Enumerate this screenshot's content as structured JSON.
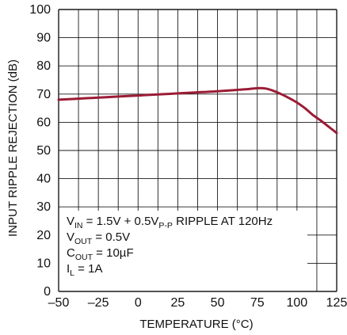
{
  "chart_data": {
    "type": "line",
    "x": [
      -50,
      -40,
      -30,
      -20,
      -10,
      0,
      10,
      20,
      30,
      40,
      50,
      60,
      65,
      70,
      75,
      80,
      85,
      90,
      95,
      100,
      105,
      110,
      115,
      120,
      125
    ],
    "series": [
      {
        "values": [
          68.0,
          68.3,
          68.6,
          68.9,
          69.2,
          69.5,
          69.8,
          70.1,
          70.4,
          70.7,
          71.0,
          71.4,
          71.6,
          71.8,
          72.1,
          72.0,
          71.2,
          70.0,
          68.6,
          67.0,
          65.0,
          62.6,
          60.6,
          58.4,
          56.2
        ]
      }
    ],
    "xlabel": "TEMPERATURE (°C)",
    "ylabel": "INPUT RIPPLE REJECTION (dB)",
    "xlim": [
      -50,
      125
    ],
    "ylim": [
      0,
      100
    ],
    "x_ticks": [
      -50,
      -25,
      0,
      25,
      50,
      75,
      100,
      125
    ],
    "x_tick_labels": [
      "–50",
      "–25",
      "0",
      "25",
      "50",
      "75",
      "100",
      "125"
    ],
    "y_ticks": [
      0,
      10,
      20,
      30,
      40,
      50,
      60,
      70,
      80,
      90,
      100
    ],
    "y_tick_labels": [
      "0",
      "10",
      "20",
      "30",
      "40",
      "50",
      "60",
      "70",
      "80",
      "90",
      "100"
    ],
    "x_grid_lines": [
      -50,
      -37.5,
      -25,
      -12.5,
      0,
      12.5,
      25,
      37.5,
      50,
      62.5,
      75,
      87.5,
      100,
      112.5,
      125
    ],
    "y_grid_lines": [
      0,
      10,
      20,
      30,
      40,
      50,
      60,
      70,
      80,
      90,
      100
    ],
    "grid": true,
    "line_color": "#9b1c35",
    "grid_color": "#1a1a1a",
    "annotations": [
      {
        "parts": [
          {
            "t": "V"
          },
          {
            "t": "IN",
            "sub": true
          },
          {
            "t": " = 1.5V + 0.5V"
          },
          {
            "t": "P-P",
            "sub": true
          },
          {
            "t": " RIPPLE AT 120Hz"
          }
        ]
      },
      {
        "parts": [
          {
            "t": "V"
          },
          {
            "t": "OUT",
            "sub": true
          },
          {
            "t": " = 0.5V"
          }
        ]
      },
      {
        "parts": [
          {
            "t": "C"
          },
          {
            "t": "OUT",
            "sub": true
          },
          {
            "t": " = 10µF"
          }
        ]
      },
      {
        "parts": [
          {
            "t": "I"
          },
          {
            "t": "L",
            "sub": true
          },
          {
            "t": " = 1A"
          }
        ]
      }
    ]
  }
}
